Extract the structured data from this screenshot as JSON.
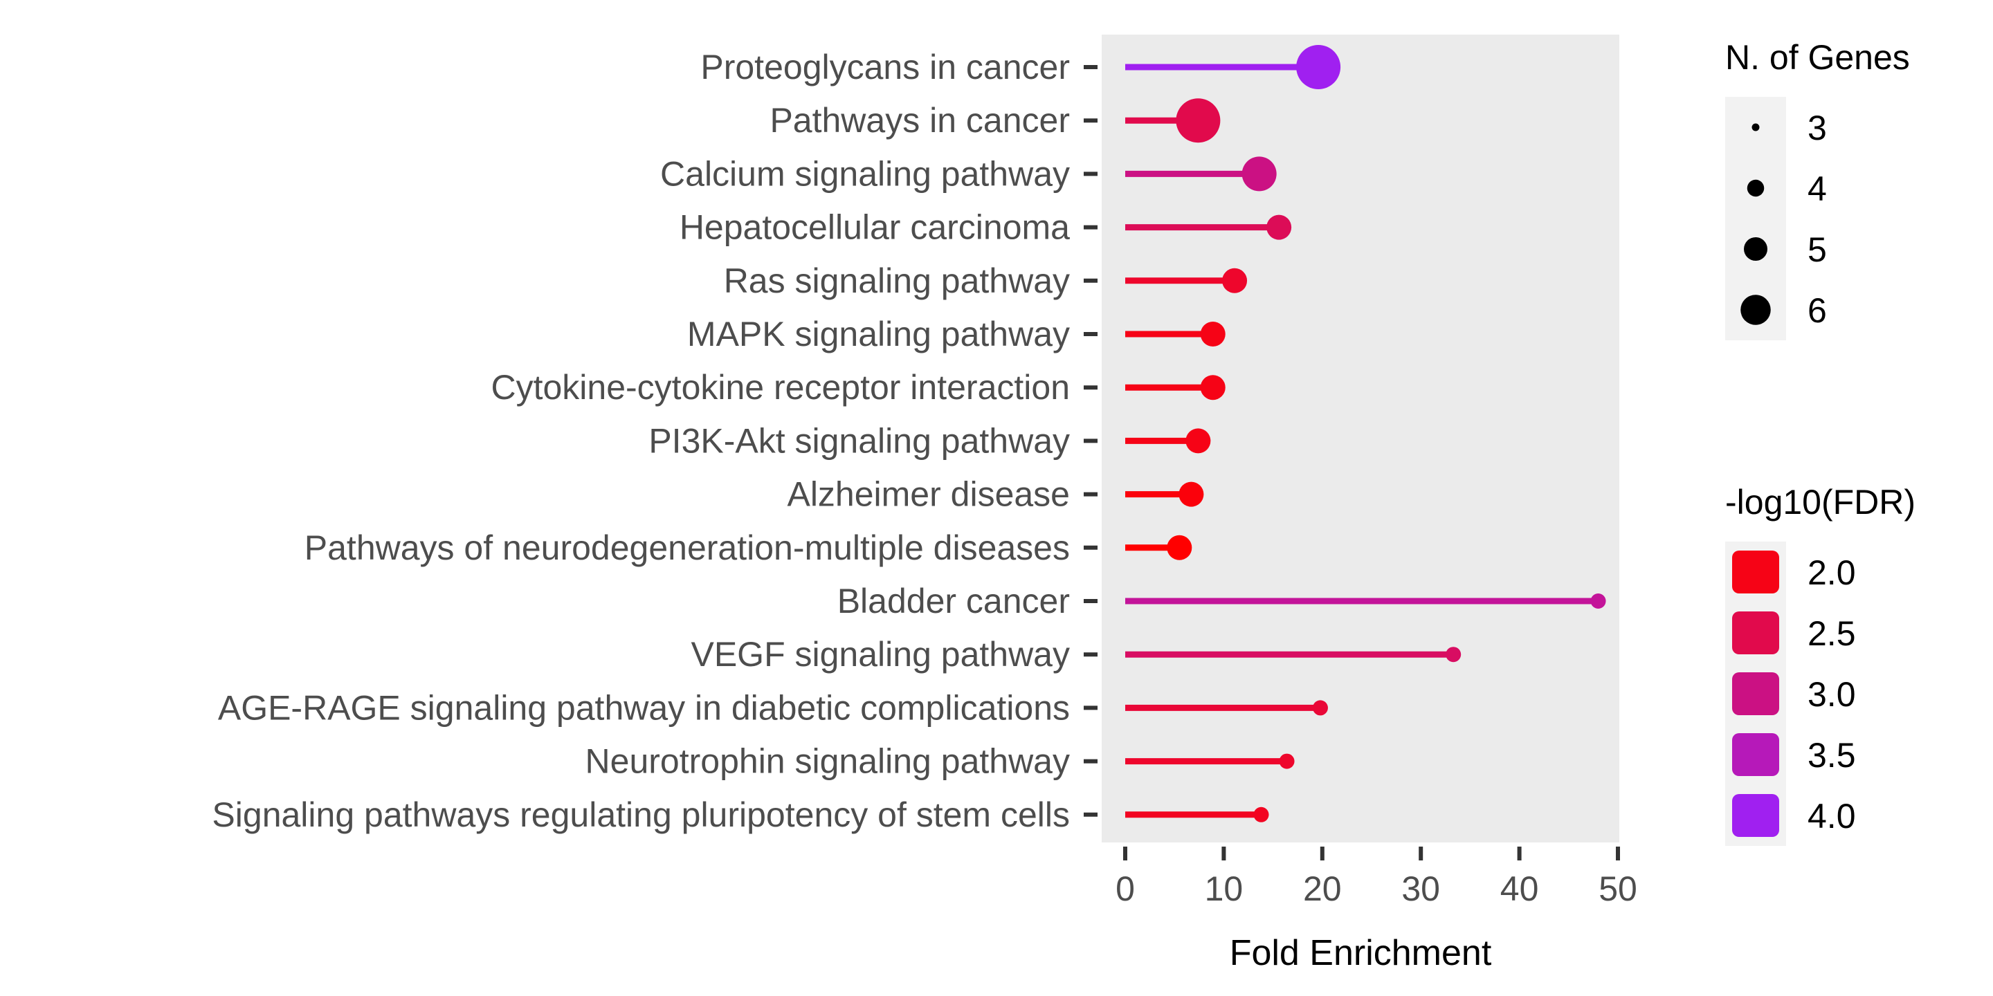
{
  "chart_data": {
    "type": "lollipop",
    "xlabel": "Fold Enrichment",
    "xlim": [
      0,
      50
    ],
    "x_ticks": [
      0,
      10,
      20,
      30,
      40,
      50
    ],
    "orientation": "horizontal",
    "categories": [
      "Proteoglycans in cancer",
      "Pathways in cancer",
      "Calcium signaling pathway",
      "Hepatocellular carcinoma",
      "Ras signaling pathway",
      "MAPK signaling pathway",
      "Cytokine-cytokine receptor interaction",
      "PI3K-Akt signaling pathway",
      "Alzheimer disease",
      "Pathways of neurodegeneration-multiple diseases",
      "Bladder cancer",
      "VEGF signaling pathway",
      "AGE-RAGE signaling pathway in diabetic complications",
      "Neurotrophin signaling pathway",
      "Signaling pathways regulating pluripotency of stem cells"
    ],
    "values": [
      19.6,
      7.4,
      13.6,
      15.6,
      11.1,
      8.9,
      8.9,
      7.4,
      6.7,
      5.5,
      48.0,
      33.3,
      19.8,
      16.4,
      13.8
    ],
    "n_genes": [
      6,
      6,
      5,
      4,
      4,
      4,
      4,
      4,
      4,
      4,
      3,
      3,
      3,
      3,
      3
    ],
    "neg_log10_fdr": [
      4.0,
      2.5,
      3.0,
      2.6,
      2.2,
      2.0,
      2.0,
      2.0,
      1.9,
      1.8,
      3.2,
      2.7,
      2.3,
      2.2,
      2.1
    ],
    "size_legend": {
      "title": "N. of Genes",
      "values": [
        3,
        4,
        5,
        6
      ],
      "labels": [
        "3",
        "4",
        "5",
        "6"
      ]
    },
    "color_legend": {
      "title": "-log10(FDR)",
      "values": [
        2.0,
        2.5,
        3.0,
        3.5,
        4.0
      ],
      "labels": [
        "2.0",
        "2.5",
        "3.0",
        "3.5",
        "4.0"
      ]
    },
    "color_scale": {
      "low_value": 1.8,
      "high_value": 4.0,
      "low_color": "#ff0000",
      "high_color": "#a020f0"
    },
    "panel_background": "#ebebeb",
    "grid": false,
    "legend_placement": "right"
  }
}
